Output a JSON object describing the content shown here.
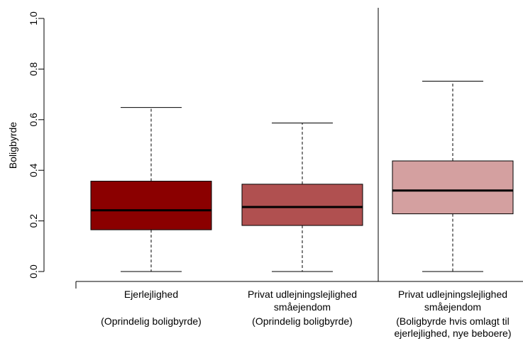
{
  "chart_data": {
    "type": "box",
    "ylabel": "Boligbyrde",
    "ylim": [
      0,
      1
    ],
    "yticks": [
      "0.0",
      "0.2",
      "0.4",
      "0.6",
      "0.8",
      "1.0"
    ],
    "categories": [
      {
        "line1": "Ejerlejlighed",
        "line2": "",
        "line3": "(Oprindelig boligbyrde)",
        "line4": "",
        "min": 0.0,
        "q1": 0.165,
        "median": 0.242,
        "q3": 0.357,
        "max": 0.648,
        "color": "#8b0000"
      },
      {
        "line1": "Privat udlejningslejlighed",
        "line2": "småejendom",
        "line3": "(Oprindelig boligbyrde)",
        "line4": "",
        "min": 0.0,
        "q1": 0.182,
        "median": 0.255,
        "q3": 0.345,
        "max": 0.587,
        "color": "#b05050"
      },
      {
        "line1": "Privat udlejningslejlighed",
        "line2": "småejendom",
        "line3": "(Boligbyrde hvis omlagt til",
        "line4": "ejerlejlighed, nye beboere)",
        "min": 0.0,
        "q1": 0.228,
        "median": 0.32,
        "q3": 0.437,
        "max": 0.752,
        "color": "#d4a0a0"
      }
    ]
  }
}
